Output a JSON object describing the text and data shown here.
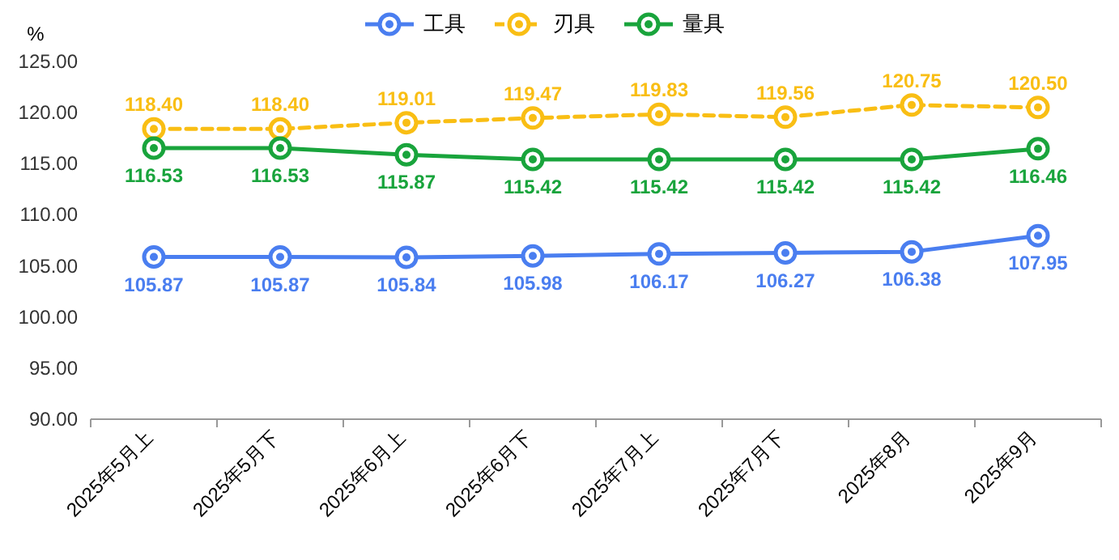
{
  "chart_data": {
    "type": "line",
    "ylabel": "%",
    "categories": [
      "2025年5月上",
      "2025年5月下",
      "2025年6月上",
      "2025年6月下",
      "2025年7月上",
      "2025年7月下",
      "2025年8月",
      "2025年9月"
    ],
    "series": [
      {
        "name": "工具",
        "color": "#4a7ef0",
        "line_style": "solid",
        "values": [
          105.87,
          105.87,
          105.84,
          105.98,
          106.17,
          106.27,
          106.38,
          107.95
        ],
        "value_labels": [
          "105.87",
          "105.87",
          "105.84",
          "105.98",
          "106.17",
          "106.27",
          "106.38",
          "107.95"
        ]
      },
      {
        "name": "刃具",
        "color": "#f9be14",
        "line_style": "dashed",
        "values": [
          118.4,
          118.4,
          119.01,
          119.47,
          119.83,
          119.56,
          120.75,
          120.5
        ],
        "value_labels": [
          "118.40",
          "118.40",
          "119.01",
          "119.47",
          "119.83",
          "119.56",
          "120.75",
          "120.50"
        ]
      },
      {
        "name": "量具",
        "color": "#19a43c",
        "line_style": "solid",
        "values": [
          116.53,
          116.53,
          115.87,
          115.42,
          115.42,
          115.42,
          115.42,
          116.46
        ],
        "value_labels": [
          "116.53",
          "116.53",
          "115.87",
          "115.42",
          "115.42",
          "115.42",
          "115.42",
          "116.46"
        ]
      }
    ],
    "ylim": [
      90,
      125
    ],
    "yticks": [
      {
        "value": 90,
        "label": "90.00"
      },
      {
        "value": 95,
        "label": "95.00"
      },
      {
        "value": 100,
        "label": "100.00"
      },
      {
        "value": 105,
        "label": "105.00"
      },
      {
        "value": 110,
        "label": "110.00"
      },
      {
        "value": 115,
        "label": "115.00"
      },
      {
        "value": 120,
        "label": "120.00"
      },
      {
        "value": 125,
        "label": "125.00"
      }
    ],
    "marker": "circle",
    "legend": "top",
    "grid": false
  }
}
